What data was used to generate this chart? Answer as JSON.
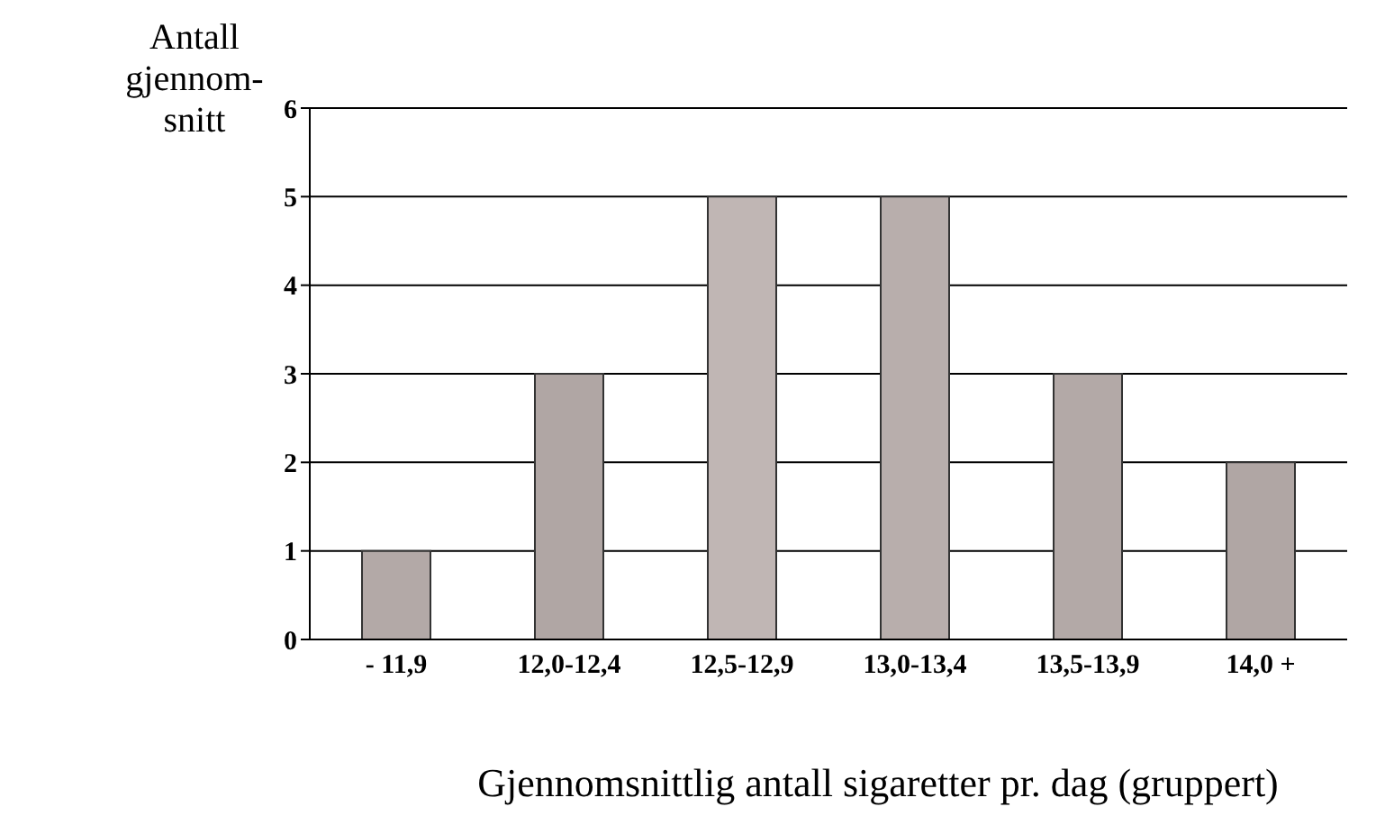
{
  "chart_data": {
    "type": "bar",
    "xlabel": "Gjennomsnittlig antall sigaretter pr. dag (gruppert)",
    "ylabel": "Antall\ngjennom-\nsnitt",
    "categories": [
      "- 11,9",
      "12,0-12,4",
      "12,5-12,9",
      "13,0-13,4",
      "13,5-13,9",
      "14,0 +"
    ],
    "values": [
      1,
      3,
      5,
      5,
      3,
      2
    ],
    "colors": [
      "#b3a9a7",
      "#b0a6a4",
      "#c0b6b4",
      "#b8aeac",
      "#b3a9a7",
      "#b0a6a4"
    ],
    "ylim": [
      0,
      6
    ],
    "yticks": [
      0,
      1,
      2,
      3,
      4,
      5,
      6
    ],
    "grid": "y"
  }
}
